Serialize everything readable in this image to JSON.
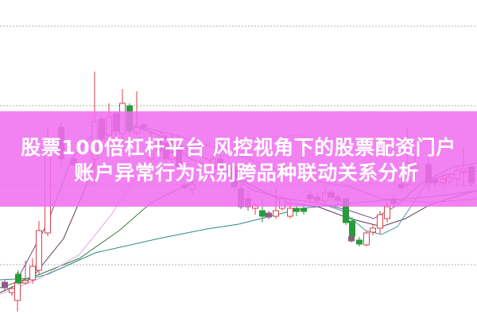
{
  "headline": {
    "line1": "股票100倍杠杆平台 风控视角下的股票配资门户",
    "line2": "账户异常行为识别跨品种联动关系分析"
  },
  "colors": {
    "banner": "#f06ef0",
    "rising_candle": "#d9404a",
    "falling_candle": "#8e5a86",
    "green_candle": "#2a9a3a",
    "grid": "#b0b0b0"
  }
}
